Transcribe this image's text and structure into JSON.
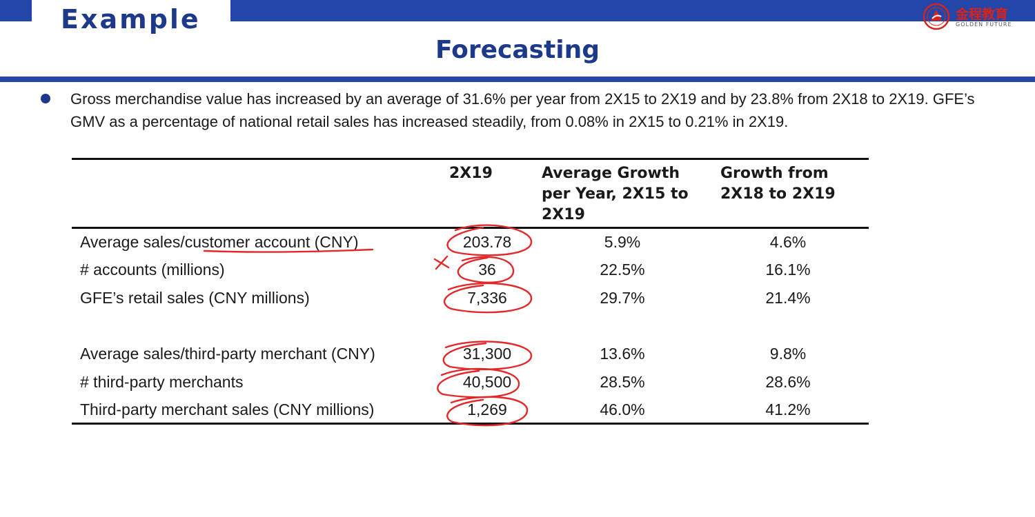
{
  "header": {
    "title": "Example",
    "subtitle": "Forecasting",
    "logo_cn": "金程教育",
    "logo_en": "GOLDEN FUTURE"
  },
  "bullet": "Gross merchandise value has increased by an average of 31.6% per year from 2X15 to 2X19 and by 23.8% from 2X18 to 2X19. GFE’s GMV as a percentage of national retail sales has increased steadily, from 0.08% in 2X15 to 0.21% in 2X19.",
  "table": {
    "columns": [
      "2X19",
      "Average Growth per Year, 2X15 to 2X19",
      "Growth from 2X18 to 2X19"
    ],
    "rows": [
      {
        "label": "Average sales/customer account (CNY)",
        "v2019": "203.78",
        "avg": "5.9%",
        "yoy": "4.6%"
      },
      {
        "label": "# accounts (millions)",
        "v2019": "36",
        "avg": "22.5%",
        "yoy": "16.1%"
      },
      {
        "label": "GFE’s retail sales (CNY millions)",
        "v2019": "7,336",
        "avg": "29.7%",
        "yoy": "21.4%"
      },
      {
        "label": "Average sales/third-party merchant (CNY)",
        "v2019": "31,300",
        "avg": "13.6%",
        "yoy": "9.8%"
      },
      {
        "label": "# third-party merchants",
        "v2019": "40,500",
        "avg": "28.5%",
        "yoy": "28.6%"
      },
      {
        "label": "Third-party merchant sales (CNY millions)",
        "v2019": "1,269",
        "avg": "46.0%",
        "yoy": "41.2%"
      }
    ]
  },
  "colors": {
    "brand_blue": "#2346a8",
    "title_blue": "#1d3a8a",
    "annotation_red": "#e3282a"
  }
}
